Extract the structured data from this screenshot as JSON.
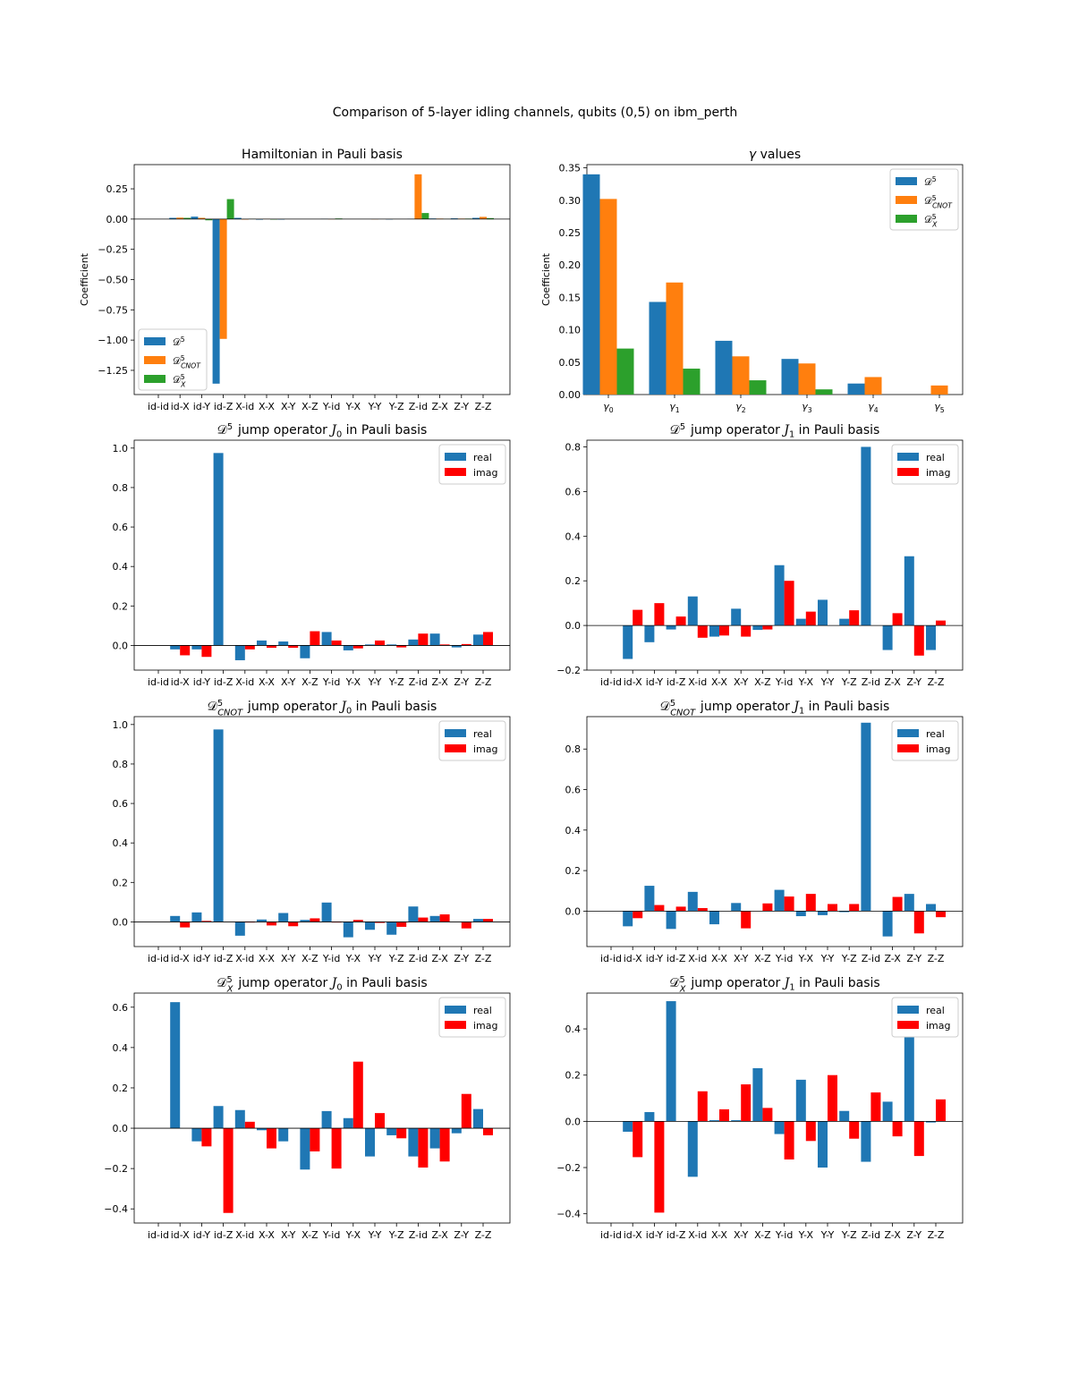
{
  "figure": {
    "title": "Comparison of 5-layer idling channels, qubits (0,5) on ibm_perth"
  },
  "colors": {
    "blue": "#1f77b4",
    "orange": "#ff7f0e",
    "green": "#2ca02c",
    "red": "#ff0000"
  },
  "chart_data": [
    {
      "type": "bar",
      "title": "Hamiltonian in Pauli basis",
      "ylabel": "Coefficient",
      "xlabel": "",
      "ylim": [
        -1.45,
        0.45
      ],
      "yticks": [
        -1.25,
        -1.0,
        -0.75,
        -0.5,
        -0.25,
        0.0,
        0.25
      ],
      "ytick_labels": [
        "−1.25",
        "−1.00",
        "−0.75",
        "−0.50",
        "−0.25",
        "0.00",
        "0.25"
      ],
      "categories": [
        "id-id",
        "id-X",
        "id-Y",
        "id-Z",
        "X-id",
        "X-X",
        "X-Y",
        "X-Z",
        "Y-id",
        "Y-X",
        "Y-Y",
        "Y-Z",
        "Z-id",
        "Z-X",
        "Z-Y",
        "Z-Z"
      ],
      "legend": "bottom-left",
      "series": [
        {
          "name": "D^5",
          "color": "#1f77b4",
          "values": [
            0,
            0.01,
            0.02,
            -1.36,
            0.01,
            -0.005,
            -0.004,
            0,
            0.003,
            0,
            0.002,
            -0.003,
            0.003,
            0.005,
            0.006,
            0.01
          ]
        },
        {
          "name": "D^5_CNOT",
          "color": "#ff7f0e",
          "values": [
            0,
            0.012,
            0.01,
            -0.99,
            -0.004,
            0.003,
            0.002,
            0,
            -0.002,
            0,
            -0.002,
            0,
            0.37,
            0.004,
            0.004,
            0.018
          ]
        },
        {
          "name": "D^5_X",
          "color": "#2ca02c",
          "values": [
            0,
            0.01,
            -0.01,
            0.165,
            0.003,
            -0.004,
            0,
            0,
            0.005,
            0,
            0.002,
            0,
            0.05,
            0.003,
            0.004,
            0.008
          ]
        }
      ]
    },
    {
      "type": "bar",
      "title": "γ values",
      "ylabel": "Coefficient",
      "xlabel": "",
      "ylim": [
        0,
        0.355
      ],
      "yticks": [
        0,
        0.05,
        0.1,
        0.15,
        0.2,
        0.25,
        0.3,
        0.35
      ],
      "ytick_labels": [
        "0.00",
        "0.05",
        "0.10",
        "0.15",
        "0.20",
        "0.25",
        "0.30",
        "0.35"
      ],
      "categories": [
        "γ0",
        "γ1",
        "γ2",
        "γ3",
        "γ4",
        "γ5"
      ],
      "legend": "top-right",
      "series": [
        {
          "name": "D^5",
          "color": "#1f77b4",
          "values": [
            0.34,
            0.143,
            0.083,
            0.055,
            0.017,
            0
          ]
        },
        {
          "name": "D^5_CNOT",
          "color": "#ff7f0e",
          "values": [
            0.302,
            0.173,
            0.059,
            0.048,
            0.027,
            0.014
          ]
        },
        {
          "name": "D^5_X",
          "color": "#2ca02c",
          "values": [
            0.071,
            0.04,
            0.022,
            0.008,
            0,
            0
          ]
        }
      ]
    },
    {
      "type": "bar",
      "title": "D^5 jump operator J0 in Pauli basis",
      "xlabel": "",
      "ylabel": "",
      "ylim": [
        -0.125,
        1.04
      ],
      "yticks": [
        0,
        0.2,
        0.4,
        0.6,
        0.8,
        1.0
      ],
      "ytick_labels": [
        "0.0",
        "0.2",
        "0.4",
        "0.6",
        "0.8",
        "1.0"
      ],
      "categories": [
        "id-id",
        "id-X",
        "id-Y",
        "id-Z",
        "X-id",
        "X-X",
        "X-Y",
        "X-Z",
        "Y-id",
        "Y-X",
        "Y-Y",
        "Y-Z",
        "Z-id",
        "Z-X",
        "Z-Y",
        "Z-Z"
      ],
      "legend": "top-right",
      "series": [
        {
          "name": "real",
          "color": "#1f77b4",
          "values": [
            0,
            -0.02,
            -0.02,
            0.975,
            -0.075,
            0.025,
            0.02,
            -0.065,
            0.068,
            -0.025,
            0.005,
            0.005,
            0.03,
            0.06,
            -0.01,
            0.055
          ]
        },
        {
          "name": "imag",
          "color": "#ff0000",
          "values": [
            0,
            -0.05,
            -0.058,
            0,
            -0.02,
            -0.012,
            -0.012,
            0.072,
            0.025,
            -0.015,
            0.025,
            -0.01,
            0.06,
            0.005,
            0.007,
            0.068
          ]
        }
      ]
    },
    {
      "type": "bar",
      "title": "D^5 jump operator J1 in Pauli basis",
      "xlabel": "",
      "ylabel": "",
      "ylim": [
        -0.2,
        0.83
      ],
      "yticks": [
        -0.2,
        0,
        0.2,
        0.4,
        0.6,
        0.8
      ],
      "ytick_labels": [
        "−0.2",
        "0.0",
        "0.2",
        "0.4",
        "0.6",
        "0.8"
      ],
      "categories": [
        "id-id",
        "id-X",
        "id-Y",
        "id-Z",
        "X-id",
        "X-X",
        "X-Y",
        "X-Z",
        "Y-id",
        "Y-X",
        "Y-Y",
        "Y-Z",
        "Z-id",
        "Z-X",
        "Z-Y",
        "Z-Z"
      ],
      "legend": "top-right",
      "series": [
        {
          "name": "real",
          "color": "#1f77b4",
          "values": [
            0,
            -0.15,
            -0.075,
            -0.018,
            0.13,
            -0.05,
            0.075,
            -0.02,
            0.27,
            0.03,
            0.115,
            0.03,
            0.8,
            -0.11,
            0.31,
            -0.11
          ]
        },
        {
          "name": "imag",
          "color": "#ff0000",
          "values": [
            0,
            0.07,
            0.1,
            0.04,
            -0.055,
            -0.045,
            -0.05,
            -0.018,
            0.2,
            0.062,
            0,
            0.068,
            0,
            0.055,
            -0.135,
            0.022
          ]
        }
      ]
    },
    {
      "type": "bar",
      "title": "D^5_CNOT jump operator J0 in Pauli basis",
      "xlabel": "",
      "ylabel": "",
      "ylim": [
        -0.125,
        1.04
      ],
      "yticks": [
        0,
        0.2,
        0.4,
        0.6,
        0.8,
        1.0
      ],
      "ytick_labels": [
        "0.0",
        "0.2",
        "0.4",
        "0.6",
        "0.8",
        "1.0"
      ],
      "categories": [
        "id-id",
        "id-X",
        "id-Y",
        "id-Z",
        "X-id",
        "X-X",
        "X-Y",
        "X-Z",
        "Y-id",
        "Y-X",
        "Y-Y",
        "Y-Z",
        "Z-id",
        "Z-X",
        "Z-Y",
        "Z-Z"
      ],
      "legend": "top-right",
      "series": [
        {
          "name": "real",
          "color": "#1f77b4",
          "values": [
            0,
            0.03,
            0.048,
            0.975,
            -0.07,
            0.012,
            0.045,
            0.01,
            0.098,
            -0.078,
            -0.04,
            -0.065,
            0.078,
            0.03,
            0,
            0.015
          ]
        },
        {
          "name": "imag",
          "color": "#ff0000",
          "values": [
            0,
            -0.028,
            0.005,
            0,
            -0.003,
            -0.018,
            -0.022,
            0.018,
            -0.003,
            0.01,
            -0.005,
            -0.025,
            0.022,
            0.038,
            -0.033,
            0.015
          ]
        }
      ]
    },
    {
      "type": "bar",
      "title": "D^5_CNOT jump operator J1 in Pauli basis",
      "xlabel": "",
      "ylabel": "",
      "ylim": [
        -0.175,
        0.96
      ],
      "yticks": [
        0,
        0.2,
        0.4,
        0.6,
        0.8
      ],
      "ytick_labels": [
        "0.0",
        "0.2",
        "0.4",
        "0.6",
        "0.8"
      ],
      "categories": [
        "id-id",
        "id-X",
        "id-Y",
        "id-Z",
        "X-id",
        "X-X",
        "X-Y",
        "X-Z",
        "Y-id",
        "Y-X",
        "Y-Y",
        "Y-Z",
        "Z-id",
        "Z-X",
        "Z-Y",
        "Z-Z"
      ],
      "legend": "top-right",
      "series": [
        {
          "name": "real",
          "color": "#1f77b4",
          "values": [
            0,
            -0.075,
            0.125,
            -0.088,
            0.095,
            -0.065,
            0.04,
            0,
            0.105,
            -0.025,
            -0.02,
            -0.005,
            0.93,
            -0.125,
            0.085,
            0.035
          ]
        },
        {
          "name": "imag",
          "color": "#ff0000",
          "values": [
            0,
            -0.035,
            0.03,
            0.022,
            0.015,
            0,
            -0.085,
            0.038,
            0.072,
            0.085,
            0.035,
            0.035,
            0,
            0.07,
            -0.11,
            -0.03
          ]
        }
      ]
    },
    {
      "type": "bar",
      "title": "D^5_X jump operator J0 in Pauli basis",
      "xlabel": "",
      "ylabel": "",
      "ylim": [
        -0.47,
        0.67
      ],
      "yticks": [
        -0.4,
        -0.2,
        0,
        0.2,
        0.4,
        0.6
      ],
      "ytick_labels": [
        "−0.4",
        "−0.2",
        "0.0",
        "0.2",
        "0.4",
        "0.6"
      ],
      "categories": [
        "id-id",
        "id-X",
        "id-Y",
        "id-Z",
        "X-id",
        "X-X",
        "X-Y",
        "X-Z",
        "Y-id",
        "Y-X",
        "Y-Y",
        "Y-Z",
        "Z-id",
        "Z-X",
        "Z-Y",
        "Z-Z"
      ],
      "legend": "top-right",
      "series": [
        {
          "name": "real",
          "color": "#1f77b4",
          "values": [
            0,
            0.625,
            -0.065,
            0.11,
            0.09,
            -0.01,
            -0.065,
            -0.205,
            0.085,
            0.05,
            -0.14,
            -0.035,
            -0.14,
            -0.1,
            -0.025,
            0.095
          ]
        },
        {
          "name": "imag",
          "color": "#ff0000",
          "values": [
            0,
            0,
            -0.09,
            -0.42,
            0.032,
            -0.1,
            0,
            -0.115,
            -0.2,
            0.33,
            0.075,
            -0.05,
            -0.195,
            -0.165,
            0.17,
            -0.035
          ]
        }
      ]
    },
    {
      "type": "bar",
      "title": "D^5_X jump operator J1 in Pauli basis",
      "xlabel": "",
      "ylabel": "",
      "ylim": [
        -0.44,
        0.555
      ],
      "yticks": [
        -0.4,
        -0.2,
        0,
        0.2,
        0.4
      ],
      "ytick_labels": [
        "−0.4",
        "−0.2",
        "0.0",
        "0.2",
        "0.4"
      ],
      "categories": [
        "id-id",
        "id-X",
        "id-Y",
        "id-Z",
        "X-id",
        "X-X",
        "X-Y",
        "X-Z",
        "Y-id",
        "Y-X",
        "Y-Y",
        "Y-Z",
        "Z-id",
        "Z-X",
        "Z-Y",
        "Z-Z"
      ],
      "legend": "top-right",
      "series": [
        {
          "name": "real",
          "color": "#1f77b4",
          "values": [
            0,
            -0.045,
            0.04,
            0.52,
            -0.24,
            0.005,
            0.005,
            0.23,
            -0.055,
            0.18,
            -0.2,
            0.045,
            -0.175,
            0.085,
            0.365,
            -0.005
          ]
        },
        {
          "name": "imag",
          "color": "#ff0000",
          "values": [
            0,
            -0.155,
            -0.395,
            0,
            0.13,
            0.052,
            0.16,
            0.058,
            -0.165,
            -0.085,
            0.2,
            -0.075,
            0.125,
            -0.065,
            -0.15,
            0.095
          ]
        }
      ]
    }
  ]
}
